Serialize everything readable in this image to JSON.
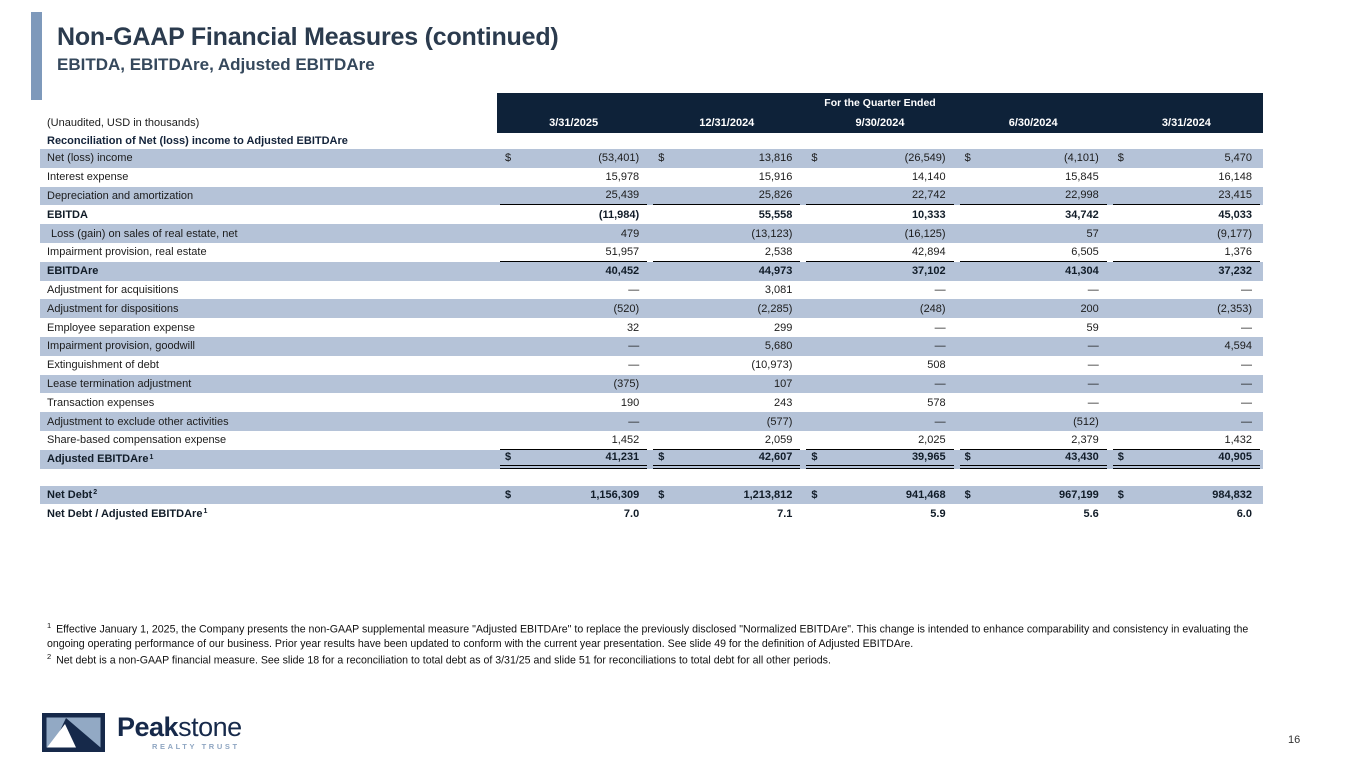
{
  "slide": {
    "title": "Non-GAAP Financial Measures (continued)",
    "subtitle": "EBITDA, EBITDAre, Adjusted EBITDAre",
    "page_number": "16"
  },
  "colors": {
    "accent_bar": "#7e99bb",
    "header_band": "#0e2239",
    "row_shade": "#b5c3d8",
    "title_text": "#2b3b4e",
    "logo_navy": "#16294a",
    "logo_slate": "#8fa6c2"
  },
  "table": {
    "unaudited_note": "(Unaudited, USD in thousands)",
    "quarter_header": "For the Quarter Ended",
    "section_header": "Reconciliation of Net (loss) income to Adjusted EBITDAre",
    "columns": [
      "3/31/2025",
      "12/31/2024",
      "9/30/2024",
      "6/30/2024",
      "3/31/2024"
    ],
    "rows": [
      {
        "label": "Net (loss) income",
        "shaded": true,
        "bold": false,
        "dollar": true,
        "underline": null,
        "values": [
          "(53,401)",
          "13,816",
          "(26,549)",
          "(4,101)",
          "5,470"
        ]
      },
      {
        "label": "Interest expense",
        "shaded": false,
        "bold": false,
        "dollar": false,
        "underline": null,
        "values": [
          "15,978",
          "15,916",
          "14,140",
          "15,845",
          "16,148"
        ]
      },
      {
        "label": "Depreciation and amortization",
        "shaded": true,
        "bold": false,
        "dollar": false,
        "underline": "single",
        "values": [
          "25,439",
          "25,826",
          "22,742",
          "22,998",
          "23,415"
        ]
      },
      {
        "label": "EBITDA",
        "shaded": false,
        "bold": true,
        "dollar": false,
        "underline": null,
        "values": [
          "(11,984)",
          "55,558",
          "10,333",
          "34,742",
          "45,033"
        ]
      },
      {
        "label": "Loss (gain) on sales of real estate, net",
        "indent": true,
        "shaded": true,
        "bold": false,
        "dollar": false,
        "underline": null,
        "values": [
          "479",
          "(13,123)",
          "(16,125)",
          "57",
          "(9,177)"
        ]
      },
      {
        "label": "Impairment provision, real estate",
        "shaded": false,
        "bold": false,
        "dollar": false,
        "underline": "single",
        "values": [
          "51,957",
          "2,538",
          "42,894",
          "6,505",
          "1,376"
        ]
      },
      {
        "label": "EBITDAre",
        "shaded": true,
        "bold": true,
        "dollar": false,
        "underline": null,
        "values": [
          "40,452",
          "44,973",
          "37,102",
          "41,304",
          "37,232"
        ]
      },
      {
        "label": "Adjustment for acquisitions",
        "shaded": false,
        "bold": false,
        "dollar": false,
        "underline": null,
        "values": [
          "—",
          "3,081",
          "—",
          "—",
          "—"
        ]
      },
      {
        "label": "Adjustment for dispositions",
        "shaded": true,
        "bold": false,
        "dollar": false,
        "underline": null,
        "values": [
          "(520)",
          "(2,285)",
          "(248)",
          "200",
          "(2,353)"
        ]
      },
      {
        "label": "Employee separation expense",
        "shaded": false,
        "bold": false,
        "dollar": false,
        "underline": null,
        "values": [
          "32",
          "299",
          "—",
          "59",
          "—"
        ]
      },
      {
        "label": "Impairment provision, goodwill",
        "shaded": true,
        "bold": false,
        "dollar": false,
        "underline": null,
        "values": [
          "—",
          "5,680",
          "—",
          "—",
          "4,594"
        ]
      },
      {
        "label": "Extinguishment of debt",
        "shaded": false,
        "bold": false,
        "dollar": false,
        "underline": null,
        "values": [
          "—",
          "(10,973)",
          "508",
          "—",
          "—"
        ]
      },
      {
        "label": "Lease termination adjustment",
        "shaded": true,
        "bold": false,
        "dollar": false,
        "underline": null,
        "values": [
          "(375)",
          "107",
          "—",
          "—",
          "—"
        ]
      },
      {
        "label": "Transaction expenses",
        "shaded": false,
        "bold": false,
        "dollar": false,
        "underline": null,
        "values": [
          "190",
          "243",
          "578",
          "—",
          "—"
        ]
      },
      {
        "label": "Adjustment to exclude other activities",
        "shaded": true,
        "bold": false,
        "dollar": false,
        "underline": null,
        "values": [
          "—",
          "(577)",
          "—",
          "(512)",
          "—"
        ]
      },
      {
        "label": "Share-based compensation expense",
        "shaded": false,
        "bold": false,
        "dollar": false,
        "underline": "single",
        "values": [
          "1,452",
          "2,059",
          "2,025",
          "2,379",
          "1,432"
        ]
      },
      {
        "label": "Adjusted EBITDAre",
        "sup": "1",
        "shaded": true,
        "bold": true,
        "dollar": true,
        "underline": "double",
        "values": [
          "41,231",
          "42,607",
          "39,965",
          "43,430",
          "40,905"
        ]
      }
    ],
    "net_debt_rows": [
      {
        "label": "Net Debt",
        "sup": "2",
        "shaded": true,
        "bold": true,
        "dollar": true,
        "underline": null,
        "values": [
          "1,156,309",
          "1,213,812",
          "941,468",
          "967,199",
          "984,832"
        ]
      },
      {
        "label": "Net Debt / Adjusted EBITDAre",
        "sup": "1",
        "shaded": false,
        "bold": true,
        "dollar": false,
        "underline": null,
        "values": [
          "7.0",
          "7.1",
          "5.9",
          "5.6",
          "6.0"
        ]
      }
    ]
  },
  "footnotes": [
    {
      "marker": "1",
      "text": "Effective January 1, 2025, the Company presents the non-GAAP supplemental measure \"Adjusted EBITDAre\" to replace the previously disclosed \"Normalized EBITDAre\". This change is intended to enhance comparability and consistency in evaluating the ongoing operating performance of our business. Prior year results have been updated to conform with the current year presentation. See slide 49 for the definition of Adjusted EBITDAre."
    },
    {
      "marker": "2",
      "text": "Net debt is a non-GAAP financial measure. See slide 18 for a reconciliation to total debt as of 3/31/25 and slide 51 for reconciliations to total debt for all other periods."
    }
  ],
  "logo": {
    "brand_bold": "Peak",
    "brand_regular": "stone",
    "tagline": "REALTY TRUST"
  }
}
